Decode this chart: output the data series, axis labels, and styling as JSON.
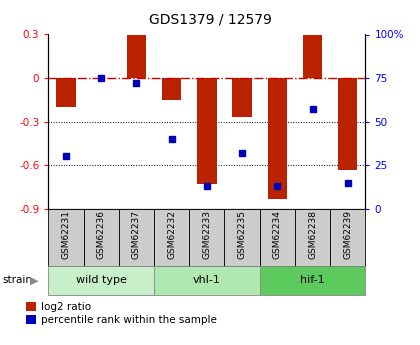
{
  "title": "GDS1379 / 12579",
  "samples": [
    "GSM62231",
    "GSM62236",
    "GSM62237",
    "GSM62232",
    "GSM62233",
    "GSM62235",
    "GSM62234",
    "GSM62238",
    "GSM62239"
  ],
  "log2_ratios": [
    -0.2,
    0.0,
    0.3,
    -0.15,
    -0.73,
    -0.27,
    -0.83,
    0.3,
    -0.63
  ],
  "percentile_ranks": [
    30,
    75,
    72,
    40,
    13,
    32,
    13,
    57,
    15
  ],
  "groups": [
    {
      "label": "wild type",
      "start": 0,
      "end": 3,
      "color": "#c8f0c8"
    },
    {
      "label": "vhl-1",
      "start": 3,
      "end": 6,
      "color": "#b0e8b0"
    },
    {
      "label": "hif-1",
      "start": 6,
      "end": 9,
      "color": "#5dca5d"
    }
  ],
  "ylim_left": [
    -0.9,
    0.3
  ],
  "ylim_right": [
    0,
    100
  ],
  "bar_color": "#bb2200",
  "dot_color": "#0000bb",
  "hline_color": "#cc0000",
  "bg_label": "#cccccc",
  "bar_width": 0.55,
  "title_fontsize": 10,
  "tick_fontsize": 7.5,
  "sample_fontsize": 6.5,
  "group_fontsize": 8
}
